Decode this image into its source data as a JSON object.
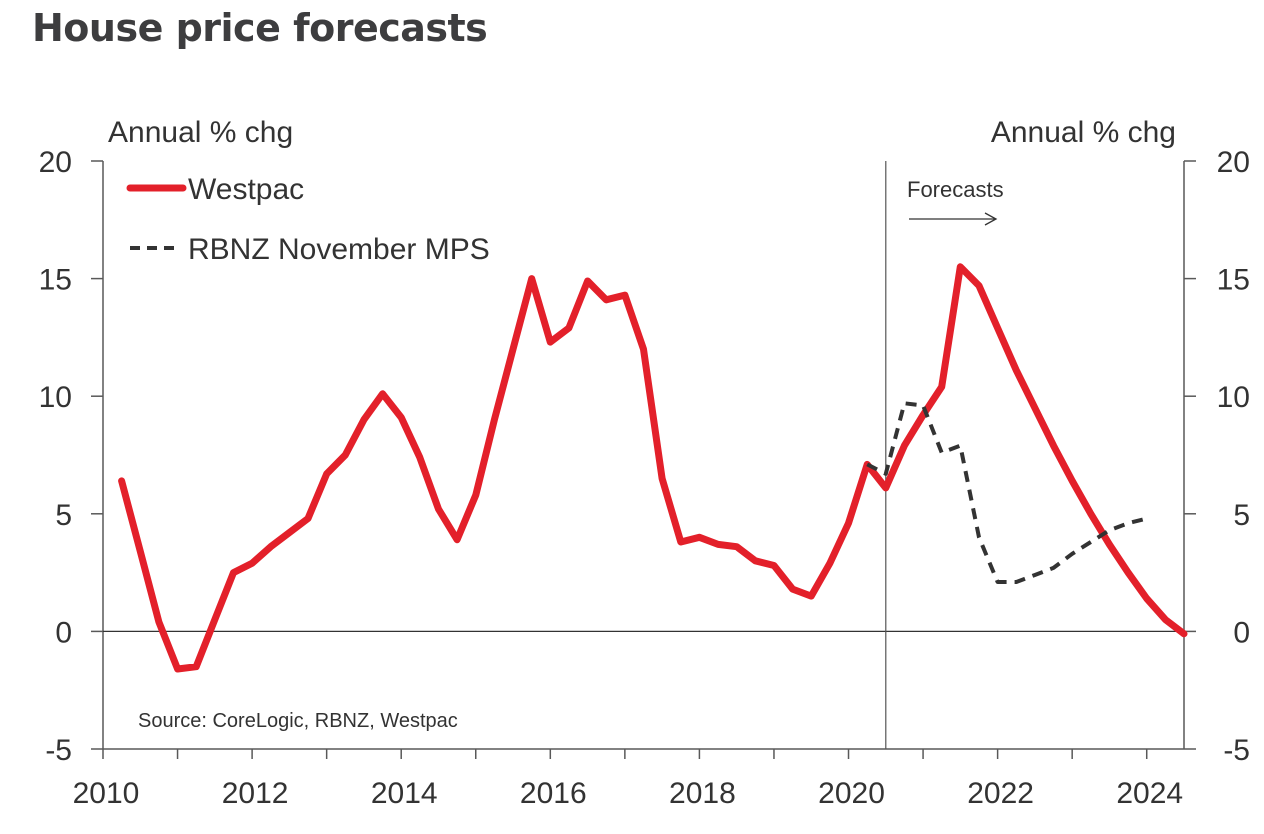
{
  "title": "House price forecasts",
  "chart_data": {
    "type": "line",
    "title": "House price forecasts",
    "ylabel_left": "Annual % chg",
    "ylabel_right": "Annual % chg",
    "xlabel": "",
    "xlim": [
      2010,
      2024.5
    ],
    "ylim": [
      -5,
      20
    ],
    "yticks": [
      -5,
      0,
      5,
      10,
      15,
      20
    ],
    "ytick_labels": [
      "-5",
      "0",
      "5",
      "10",
      "15",
      "20"
    ],
    "xticks": [
      2010,
      2012,
      2014,
      2016,
      2018,
      2020,
      2022,
      2024
    ],
    "xtick_labels": [
      "2010",
      "2012",
      "2014",
      "2016",
      "2018",
      "2020",
      "2022",
      "2024"
    ],
    "grid": false,
    "legend_position": "top-left",
    "annotations": {
      "forecast_label": "Forecasts",
      "forecast_start": 2020.5,
      "source": "Source: CoreLogic, RBNZ, Westpac"
    },
    "series": [
      {
        "name": "Westpac",
        "color": "#e3202a",
        "style": "solid",
        "x": [
          2010.25,
          2010.5,
          2010.75,
          2011.0,
          2011.25,
          2011.5,
          2011.75,
          2012.0,
          2012.25,
          2012.5,
          2012.75,
          2013.0,
          2013.25,
          2013.5,
          2013.75,
          2014.0,
          2014.25,
          2014.5,
          2014.75,
          2015.0,
          2015.25,
          2015.5,
          2015.75,
          2016.0,
          2016.25,
          2016.5,
          2016.75,
          2017.0,
          2017.25,
          2017.5,
          2017.75,
          2018.0,
          2018.25,
          2018.5,
          2018.75,
          2019.0,
          2019.25,
          2019.5,
          2019.75,
          2020.0,
          2020.25,
          2020.5,
          2020.75,
          2021.0,
          2021.25,
          2021.5,
          2021.75,
          2022.0,
          2022.25,
          2022.5,
          2022.75,
          2023.0,
          2023.25,
          2023.5,
          2023.75,
          2024.0,
          2024.25,
          2024.5
        ],
        "values": [
          6.4,
          3.4,
          0.4,
          -1.6,
          -1.5,
          0.5,
          2.5,
          2.9,
          3.6,
          4.2,
          4.8,
          6.7,
          7.5,
          9.0,
          10.1,
          9.1,
          7.4,
          5.2,
          3.9,
          5.8,
          9.0,
          12.0,
          15.0,
          12.3,
          12.9,
          14.9,
          14.1,
          14.3,
          12.0,
          6.5,
          3.8,
          4.0,
          3.7,
          3.6,
          3.0,
          2.8,
          1.8,
          1.5,
          2.9,
          4.6,
          7.1,
          6.1,
          7.9,
          9.2,
          10.4,
          15.5,
          14.7,
          12.9,
          11.1,
          9.5,
          7.9,
          6.4,
          5.0,
          3.7,
          2.5,
          1.4,
          0.5,
          -0.1
        ]
      },
      {
        "name": "RBNZ November MPS",
        "color": "#333333",
        "style": "dashed",
        "x": [
          2020.25,
          2020.5,
          2020.75,
          2021.0,
          2021.25,
          2021.5,
          2021.75,
          2022.0,
          2022.25,
          2022.5,
          2022.75,
          2023.0,
          2023.25,
          2023.5,
          2023.75,
          2024.0
        ],
        "values": [
          7.1,
          6.7,
          9.7,
          9.6,
          7.6,
          7.9,
          4.0,
          2.1,
          2.1,
          2.4,
          2.7,
          3.3,
          3.8,
          4.3,
          4.6,
          4.8
        ]
      }
    ]
  }
}
